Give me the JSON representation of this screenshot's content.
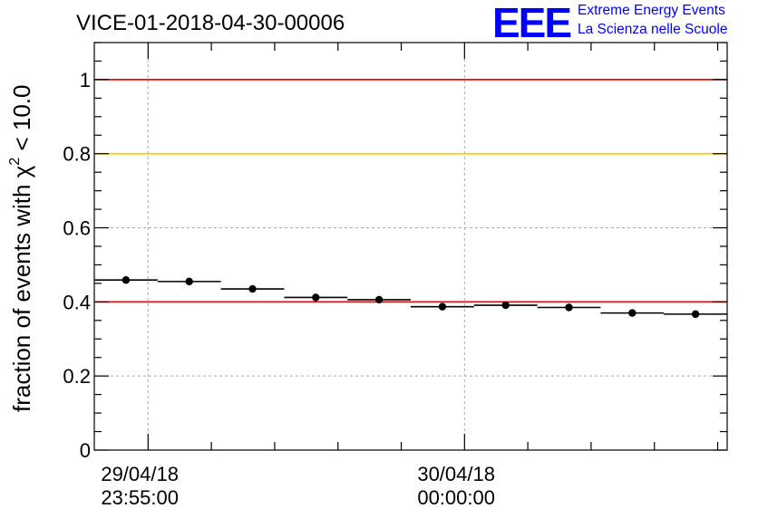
{
  "header": {
    "run_id": "VICE-01-2018-04-30-00006"
  },
  "logo": {
    "mark": "EEE",
    "line1": "Extreme Energy Events",
    "line2": "La Scienza nelle Scuole",
    "color": "#0000ff"
  },
  "chart_data": {
    "type": "scatter",
    "title": "VICE-01-2018-04-30-00006",
    "ylabel_prefix": "fraction of events with χ",
    "ylabel_sup": "2",
    "ylabel_suffix": " < 10.0",
    "ylim": [
      0,
      1.1
    ],
    "y_ticks": [
      "0",
      "0.2",
      "0.4",
      "0.6",
      "0.8",
      "1"
    ],
    "x_ticks": [
      {
        "date": "29/04/18",
        "time": "23:55:00"
      },
      {
        "date": "30/04/18",
        "time": "00:00:00"
      }
    ],
    "grid": true,
    "reference_lines": [
      {
        "y": 1.0,
        "color": "#ff0000"
      },
      {
        "y": 0.8,
        "color": "#ffc800"
      },
      {
        "y": 0.4,
        "color": "#ff0000"
      }
    ],
    "series": [
      {
        "points": [
          {
            "x": 0.5,
            "y": 0.459
          },
          {
            "x": 1.5,
            "y": 0.455
          },
          {
            "x": 2.5,
            "y": 0.435
          },
          {
            "x": 3.5,
            "y": 0.412
          },
          {
            "x": 4.5,
            "y": 0.406
          },
          {
            "x": 5.5,
            "y": 0.387
          },
          {
            "x": 6.5,
            "y": 0.391
          },
          {
            "x": 7.5,
            "y": 0.385
          },
          {
            "x": 8.5,
            "y": 0.37
          },
          {
            "x": 9.5,
            "y": 0.367
          }
        ],
        "xerr": 0.5
      }
    ]
  }
}
